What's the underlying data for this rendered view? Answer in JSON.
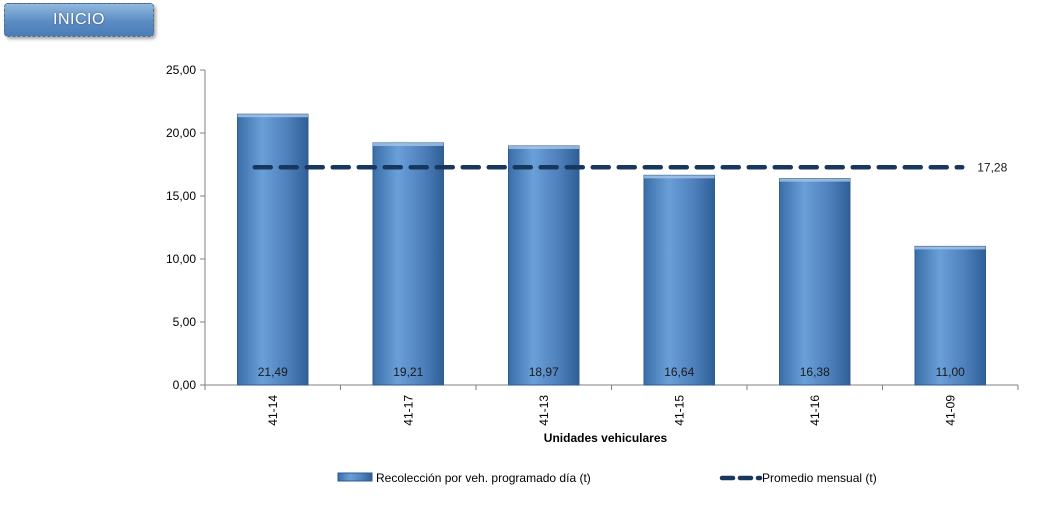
{
  "nav": {
    "inicio_label": "INICIO"
  },
  "chart_data": {
    "type": "bar",
    "categories": [
      "41-14",
      "41-17",
      "41-13",
      "41-15",
      "41-16",
      "41-09"
    ],
    "series": [
      {
        "name": "Recolección por veh. programado día (t)",
        "type": "bar",
        "values": [
          21.49,
          19.21,
          18.97,
          16.64,
          16.38,
          11.0
        ],
        "labels": [
          "21,49",
          "19,21",
          "18,97",
          "16,64",
          "16,38",
          "11,00"
        ],
        "color": "#4f81bd"
      },
      {
        "name": "Promedio mensual (t)",
        "type": "line",
        "value": 17.28,
        "label": "17,28",
        "color": "#17375e"
      }
    ],
    "yticks": [
      "0,00",
      "5,00",
      "10,00",
      "15,00",
      "20,00",
      "25,00"
    ],
    "ylim": [
      0,
      25
    ],
    "xlabel": "Unidades vehiculares",
    "ylabel": "",
    "title": "",
    "grid": false,
    "legend": "bottom"
  }
}
